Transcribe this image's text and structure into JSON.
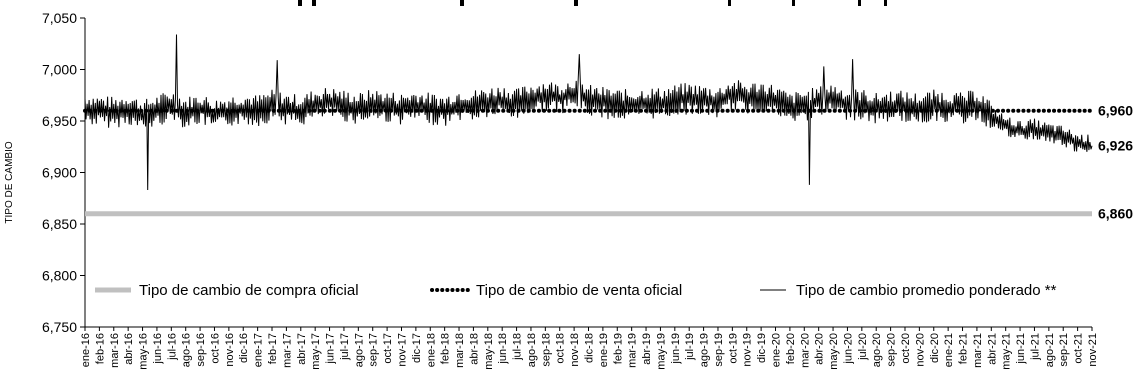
{
  "chart_data": {
    "type": "line",
    "title": "",
    "xlabel": "",
    "ylabel": "TIPO DE CAMBIO",
    "ylim": [
      6.75,
      7.05
    ],
    "yticks": [
      "6,750",
      "6,800",
      "6,850",
      "6,900",
      "6,950",
      "7,000",
      "7,050"
    ],
    "categories": [
      "ene-16",
      "feb-16",
      "mar-16",
      "abr-16",
      "may-16",
      "jun-16",
      "jul-16",
      "ago-16",
      "sep-16",
      "oct-16",
      "nov-16",
      "dic-16",
      "ene-17",
      "feb-17",
      "mar-17",
      "abr-17",
      "may-17",
      "jun-17",
      "jul-17",
      "ago-17",
      "sep-17",
      "oct-17",
      "nov-17",
      "dic-17",
      "ene-18",
      "feb-18",
      "mar-18",
      "abr-18",
      "may-18",
      "jun-18",
      "jul-18",
      "ago-18",
      "sep-18",
      "oct-18",
      "nov-18",
      "dic-18",
      "ene-19",
      "feb-19",
      "mar-19",
      "abr-19",
      "may-19",
      "jun-19",
      "jul-19",
      "ago-19",
      "sep-19",
      "oct-19",
      "nov-19",
      "dic-19",
      "ene-20",
      "feb-20",
      "mar-20",
      "abr-20",
      "may-20",
      "jun-20",
      "jul-20",
      "ago-20",
      "sep-20",
      "oct-20",
      "nov-20",
      "dic-20",
      "ene-21",
      "feb-21",
      "mar-21",
      "abr-21",
      "may-21",
      "jun-21",
      "jul-21",
      "ago-21",
      "sep-21",
      "oct-21",
      "nov-21"
    ],
    "grid": false,
    "legend_position": "bottom",
    "series": [
      {
        "name": "Tipo de cambio de compra oficial",
        "color": "#c0c0c0",
        "style": "thick-solid",
        "end_label": "6,860",
        "values": [
          6.86,
          6.86,
          6.86,
          6.86,
          6.86,
          6.86,
          6.86,
          6.86,
          6.86,
          6.86,
          6.86,
          6.86,
          6.86,
          6.86,
          6.86,
          6.86,
          6.86,
          6.86,
          6.86,
          6.86,
          6.86,
          6.86,
          6.86,
          6.86,
          6.86,
          6.86,
          6.86,
          6.86,
          6.86,
          6.86,
          6.86,
          6.86,
          6.86,
          6.86,
          6.86,
          6.86,
          6.86,
          6.86,
          6.86,
          6.86,
          6.86,
          6.86,
          6.86,
          6.86,
          6.86,
          6.86,
          6.86,
          6.86,
          6.86,
          6.86,
          6.86,
          6.86,
          6.86,
          6.86,
          6.86,
          6.86,
          6.86,
          6.86,
          6.86,
          6.86,
          6.86,
          6.86,
          6.86,
          6.86,
          6.86,
          6.86,
          6.86,
          6.86,
          6.86,
          6.86,
          6.86
        ]
      },
      {
        "name": "Tipo de cambio de venta oficial",
        "color": "#000000",
        "style": "dotted",
        "end_label": "6,960",
        "values": [
          6.96,
          6.96,
          6.96,
          6.96,
          6.96,
          6.96,
          6.96,
          6.96,
          6.96,
          6.96,
          6.96,
          6.96,
          6.96,
          6.96,
          6.96,
          6.96,
          6.96,
          6.96,
          6.96,
          6.96,
          6.96,
          6.96,
          6.96,
          6.96,
          6.96,
          6.96,
          6.96,
          6.96,
          6.96,
          6.96,
          6.96,
          6.96,
          6.96,
          6.96,
          6.96,
          6.96,
          6.96,
          6.96,
          6.96,
          6.96,
          6.96,
          6.96,
          6.96,
          6.96,
          6.96,
          6.96,
          6.96,
          6.96,
          6.96,
          6.96,
          6.96,
          6.96,
          6.96,
          6.96,
          6.96,
          6.96,
          6.96,
          6.96,
          6.96,
          6.96,
          6.96,
          6.96,
          6.96,
          6.96,
          6.96,
          6.96,
          6.96,
          6.96,
          6.96,
          6.96,
          6.96
        ]
      },
      {
        "name": "Tipo de cambio promedio ponderado **",
        "color": "#000000",
        "style": "thin-solid",
        "end_label": "6,926",
        "values": [
          6.962,
          6.96,
          6.958,
          6.962,
          6.955,
          6.96,
          6.965,
          6.958,
          6.962,
          6.956,
          6.96,
          6.962,
          6.96,
          6.965,
          6.962,
          6.96,
          6.966,
          6.968,
          6.965,
          6.962,
          6.966,
          6.964,
          6.962,
          6.965,
          6.962,
          6.96,
          6.966,
          6.965,
          6.968,
          6.97,
          6.966,
          6.972,
          6.975,
          6.972,
          6.978,
          6.97,
          6.968,
          6.966,
          6.965,
          6.968,
          6.967,
          6.97,
          6.972,
          6.97,
          6.968,
          6.976,
          6.972,
          6.974,
          6.97,
          6.962,
          6.965,
          6.968,
          6.972,
          6.966,
          6.966,
          6.962,
          6.965,
          6.964,
          6.962,
          6.965,
          6.964,
          6.962,
          6.966,
          6.955,
          6.945,
          6.94,
          6.942,
          6.938,
          6.935,
          6.928,
          6.926
        ]
      }
    ],
    "daily_extremes": [
      {
        "at": "may-16",
        "value": 6.883
      },
      {
        "at": "jul-16",
        "value": 7.034
      },
      {
        "at": "feb-17",
        "value": 7.009
      },
      {
        "at": "nov-18",
        "value": 7.015
      },
      {
        "at": "mar-20",
        "value": 6.888
      },
      {
        "at": "jun-20",
        "value": 7.01
      },
      {
        "at": "abr-20",
        "value": 7.003
      }
    ]
  }
}
